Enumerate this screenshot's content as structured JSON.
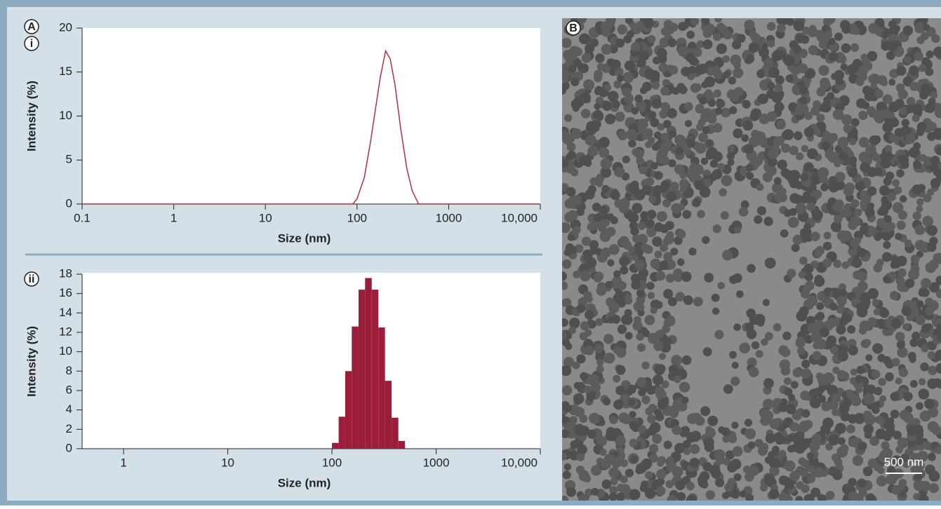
{
  "chart_data": [
    {
      "type": "line",
      "panel": "A",
      "subpanel": "i",
      "xlabel": "Size (nm)",
      "ylabel": "Intensity (%)",
      "xscale": "log",
      "color": "#b0303f",
      "xlim": [
        0.1,
        10000
      ],
      "xticks": [
        0.1,
        1,
        10,
        100,
        1000,
        {
          "value": 10000,
          "label": "10,000"
        }
      ],
      "ylim": [
        0,
        20
      ],
      "yticks": [
        0,
        5,
        10,
        15,
        20
      ],
      "x": [
        0.1,
        90,
        100,
        120,
        140,
        160,
        180,
        205,
        230,
        260,
        300,
        350,
        400,
        470,
        10000
      ],
      "values": [
        0,
        0,
        0.6,
        3,
        7,
        11,
        14.5,
        17.4,
        16.5,
        13.5,
        8.5,
        4,
        1.5,
        0,
        0
      ]
    },
    {
      "type": "histogram",
      "subpanel": "ii",
      "xlabel": "Size (nm)",
      "ylabel": "Intensity (%)",
      "xscale": "log",
      "color": "#9b1d3a",
      "xlim": [
        0.4,
        10000
      ],
      "xticks": [
        1,
        10,
        100,
        1000,
        {
          "value": 10000,
          "label": "10,000"
        }
      ],
      "ylim": [
        0,
        18
      ],
      "yticks": [
        0,
        2,
        4,
        6,
        8,
        10,
        12,
        14,
        16,
        18
      ],
      "bins": [
        100,
        116,
        134,
        155,
        180,
        208,
        241,
        279,
        323,
        374,
        434,
        502
      ],
      "values": [
        0.6,
        3.3,
        8,
        12.6,
        16.4,
        17.6,
        16.4,
        12.5,
        7,
        3.2,
        0.8
      ]
    }
  ],
  "image": {
    "label": "B",
    "scale_bar": "500 nm"
  }
}
